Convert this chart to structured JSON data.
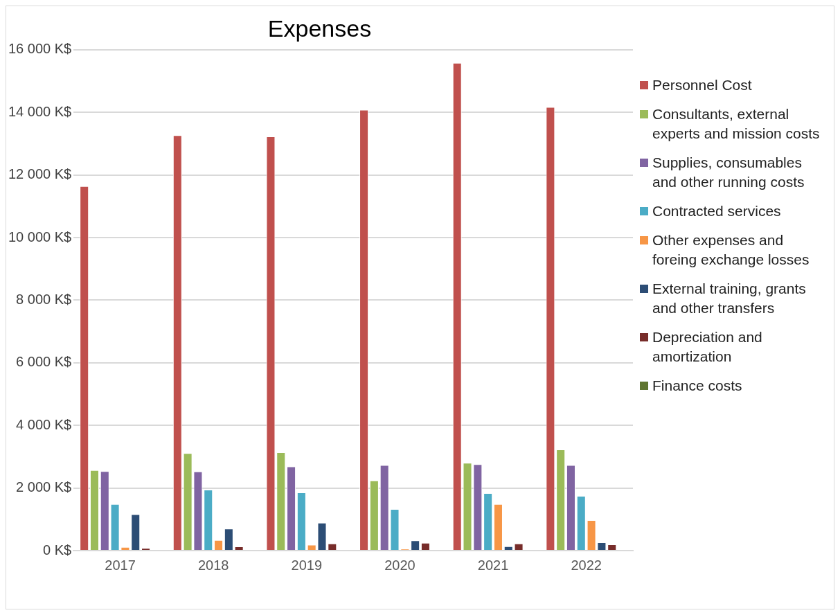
{
  "chart_data": {
    "type": "bar",
    "title": "Expenses",
    "categories": [
      "2017",
      "2018",
      "2019",
      "2020",
      "2021",
      "2022"
    ],
    "series": [
      {
        "name": "Personnel Cost",
        "color": "#c0504d",
        "values": [
          11640,
          13270,
          13230,
          14080,
          15580,
          14170
        ]
      },
      {
        "name": "Consultants, external experts  and mission costs",
        "color": "#9bbb59",
        "values": [
          2570,
          3115,
          3140,
          2240,
          2805,
          3230
        ]
      },
      {
        "name": "Supplies, consumables and other running costs",
        "color": "#8064a2",
        "values": [
          2540,
          2525,
          2690,
          2730,
          2760,
          2735
        ]
      },
      {
        "name": "Contracted services",
        "color": "#4bacc6",
        "values": [
          1490,
          1945,
          1860,
          1325,
          1835,
          1750
        ]
      },
      {
        "name": "Other expenses and foreing exchange losses",
        "color": "#f79646",
        "values": [
          116,
          340,
          186,
          55,
          1490,
          975
        ]
      },
      {
        "name": "External training, grants and other transfers",
        "color": "#2c4d75",
        "values": [
          1160,
          700,
          890,
          325,
          140,
          265
        ]
      },
      {
        "name": "Depreciation and amortization",
        "color": "#772c2a",
        "values": [
          85,
          130,
          225,
          250,
          225,
          200
        ]
      },
      {
        "name": "Finance costs",
        "color": "#5f7530",
        "values": [
          0,
          0,
          0,
          0,
          0,
          0
        ]
      }
    ],
    "ylim": [
      0,
      16000
    ],
    "yticks": [
      {
        "value": 0,
        "label": "0 K$"
      },
      {
        "value": 2000,
        "label": "2 000 K$"
      },
      {
        "value": 4000,
        "label": "4 000 K$"
      },
      {
        "value": 6000,
        "label": "6 000 K$"
      },
      {
        "value": 8000,
        "label": "8 000 K$"
      },
      {
        "value": 10000,
        "label": "10 000 K$"
      },
      {
        "value": 12000,
        "label": "12 000 K$"
      },
      {
        "value": 14000,
        "label": "14 000 K$"
      },
      {
        "value": 16000,
        "label": "16 000 K$"
      }
    ],
    "grid": "y",
    "legend": "right"
  }
}
